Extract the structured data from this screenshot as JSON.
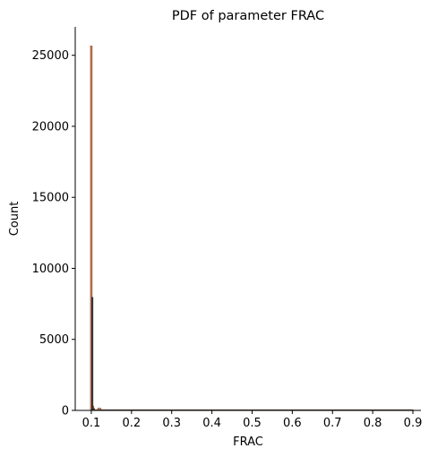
{
  "chart_data": {
    "type": "bar",
    "title": "PDF of parameter FRAC",
    "xlabel": "FRAC",
    "ylabel": "Count",
    "xlim": [
      0.06,
      0.92
    ],
    "ylim": [
      0,
      27000
    ],
    "xticks": [
      0.1,
      0.2,
      0.3,
      0.4,
      0.5,
      0.6,
      0.7,
      0.8,
      0.9
    ],
    "xtick_labels": [
      "0.1",
      "0.2",
      "0.3",
      "0.4",
      "0.5",
      "0.6",
      "0.7",
      "0.8",
      "0.9"
    ],
    "yticks": [
      0,
      5000,
      10000,
      15000,
      20000,
      25000
    ],
    "ytick_labels": [
      "0",
      "5000",
      "10000",
      "15000",
      "20000",
      "25000"
    ],
    "grid": false,
    "series": [
      {
        "color": "#a0522d",
        "bins": [
          {
            "x0": 0.098,
            "x1": 0.102,
            "count": 25650
          },
          {
            "x0": 0.102,
            "x1": 0.106,
            "count": 300
          },
          {
            "x0": 0.116,
            "x1": 0.124,
            "count": 150
          },
          {
            "x0": 0.124,
            "x1": 0.9,
            "count": 40
          }
        ]
      },
      {
        "color": "#2b2b2b",
        "bins": [
          {
            "x0": 0.101,
            "x1": 0.104,
            "count": 7950
          },
          {
            "x0": 0.104,
            "x1": 0.108,
            "count": 120
          },
          {
            "x0": 0.108,
            "x1": 0.9,
            "count": 30
          }
        ]
      }
    ]
  }
}
